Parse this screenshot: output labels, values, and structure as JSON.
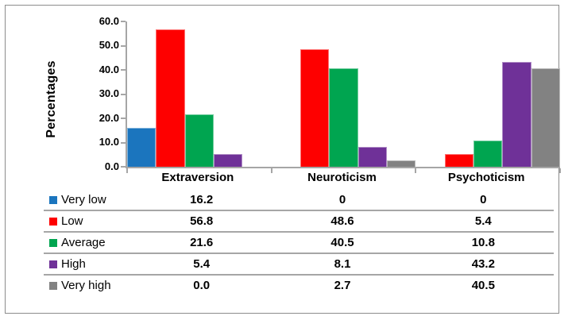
{
  "chart_data": {
    "type": "bar",
    "title": "",
    "xlabel": "",
    "ylabel": "Percentages",
    "categories": [
      "Extraversion",
      "Neuroticism",
      "Psychoticism"
    ],
    "series": [
      {
        "name": "Very low",
        "color": "#1b75be",
        "values": [
          16.2,
          0,
          0
        ]
      },
      {
        "name": "Low",
        "color": "#fe0000",
        "values": [
          56.8,
          48.6,
          5.4
        ]
      },
      {
        "name": "Average",
        "color": "#00a550",
        "values": [
          21.6,
          40.5,
          10.8
        ]
      },
      {
        "name": "High",
        "color": "#6f3198",
        "values": [
          5.4,
          8.1,
          43.2
        ]
      },
      {
        "name": "Very high",
        "color": "#828282",
        "values": [
          0.0,
          2.7,
          40.5
        ]
      }
    ],
    "ylim": [
      0,
      60
    ],
    "ytick_step": 10,
    "ytick_labels": [
      "60.0",
      "50.0",
      "40.0",
      "30.0",
      "20.0",
      "10.0",
      "0.0"
    ],
    "grid": false,
    "legend_position": "table-below"
  },
  "table": {
    "rows": [
      {
        "label": "Very low",
        "swatch": "#1b75be",
        "values": [
          "16.2",
          "0",
          "0"
        ]
      },
      {
        "label": "Low",
        "swatch": "#fe0000",
        "values": [
          "56.8",
          "48.6",
          "5.4"
        ]
      },
      {
        "label": "Average",
        "swatch": "#00a550",
        "values": [
          "21.6",
          "40.5",
          "10.8"
        ]
      },
      {
        "label": "High",
        "swatch": "#6f3198",
        "values": [
          "5.4",
          "8.1",
          "43.2"
        ]
      },
      {
        "label": "Very high",
        "swatch": "#828282",
        "values": [
          "0.0",
          "2.7",
          "40.5"
        ]
      }
    ]
  },
  "colors": {
    "axis": "#a6a6a6",
    "table_separator": "#a6a6a6",
    "frame_border": "#8c8c8c",
    "text": "#000000"
  }
}
